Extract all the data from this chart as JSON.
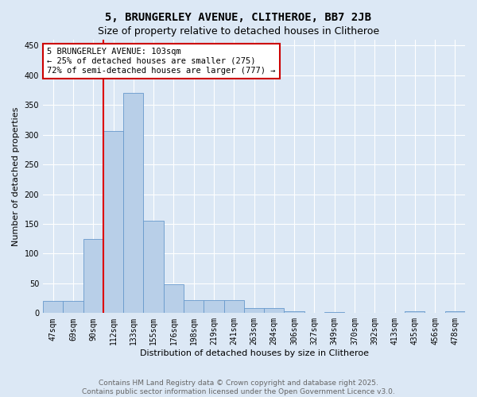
{
  "title": "5, BRUNGERLEY AVENUE, CLITHEROE, BB7 2JB",
  "subtitle": "Size of property relative to detached houses in Clitheroe",
  "xlabel": "Distribution of detached houses by size in Clitheroe",
  "ylabel": "Number of detached properties",
  "bin_labels": [
    "47sqm",
    "69sqm",
    "90sqm",
    "112sqm",
    "133sqm",
    "155sqm",
    "176sqm",
    "198sqm",
    "219sqm",
    "241sqm",
    "263sqm",
    "284sqm",
    "306sqm",
    "327sqm",
    "349sqm",
    "370sqm",
    "392sqm",
    "413sqm",
    "435sqm",
    "456sqm",
    "478sqm"
  ],
  "bar_heights": [
    21,
    21,
    125,
    307,
    370,
    155,
    49,
    22,
    22,
    22,
    8,
    8,
    3,
    0,
    2,
    0,
    1,
    0,
    3,
    0,
    3
  ],
  "bar_color": "#b8cfe8",
  "bar_edge_color": "#6699cc",
  "vline_color": "#dd0000",
  "annotation_text": "5 BRUNGERLEY AVENUE: 103sqm\n← 25% of detached houses are smaller (275)\n72% of semi-detached houses are larger (777) →",
  "annotation_box_color": "#cc0000",
  "ylim": [
    0,
    460
  ],
  "yticks": [
    0,
    50,
    100,
    150,
    200,
    250,
    300,
    350,
    400,
    450
  ],
  "background_color": "#dce8f5",
  "plot_bg_color": "#dce8f5",
  "footer_text": "Contains HM Land Registry data © Crown copyright and database right 2025.\nContains public sector information licensed under the Open Government Licence v3.0.",
  "title_fontsize": 10,
  "subtitle_fontsize": 9,
  "axis_label_fontsize": 8,
  "tick_fontsize": 7,
  "footer_fontsize": 6.5,
  "annotation_fontsize": 7.5
}
